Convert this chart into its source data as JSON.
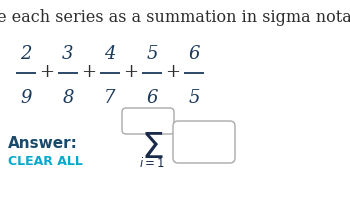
{
  "title": "Write each series as a summation in sigma notation.",
  "title_color": "#2d2d2d",
  "title_fontsize": 11.5,
  "fractions": [
    {
      "num": "2",
      "den": "9"
    },
    {
      "num": "3",
      "den": "8"
    },
    {
      "num": "4",
      "den": "7"
    },
    {
      "num": "5",
      "den": "6"
    },
    {
      "num": "6",
      "den": "5"
    }
  ],
  "answer_label": "Answer:",
  "clear_label": "CLEAR ALL",
  "answer_color": "#1a4a6b",
  "clear_color": "#00aacc",
  "sigma_color": "#1a2a4a",
  "background_color": "#ffffff",
  "fraction_color": "#1a3a5c",
  "plus_color": "#2d2d2d"
}
